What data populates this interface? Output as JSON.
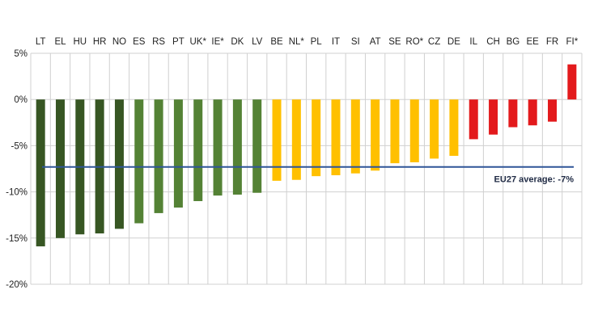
{
  "chart_data": {
    "type": "bar",
    "categories": [
      "LT",
      "EL",
      "HU",
      "HR",
      "NO",
      "ES",
      "RS",
      "PT",
      "UK*",
      "IE*",
      "DK",
      "LV",
      "BE",
      "NL*",
      "PL",
      "IT",
      "SI",
      "AT",
      "SE",
      "RO*",
      "CZ",
      "DE",
      "IL",
      "CH",
      "BG",
      "EE",
      "FR",
      "FI*"
    ],
    "values": [
      -15.9,
      -15.0,
      -14.6,
      -14.5,
      -14.0,
      -13.4,
      -12.3,
      -11.7,
      -11.0,
      -10.4,
      -10.3,
      -10.1,
      -8.8,
      -8.7,
      -8.3,
      -8.2,
      -8.0,
      -7.7,
      -6.9,
      -6.8,
      -6.4,
      -6.1,
      -4.3,
      -3.8,
      -3.0,
      -2.8,
      -2.4,
      3.8
    ],
    "colors": [
      "#375623",
      "#375623",
      "#375623",
      "#375623",
      "#375623",
      "#548235",
      "#548235",
      "#548235",
      "#548235",
      "#548235",
      "#548235",
      "#548235",
      "#ffc000",
      "#ffc000",
      "#ffc000",
      "#ffc000",
      "#ffc000",
      "#ffc000",
      "#ffc000",
      "#ffc000",
      "#ffc000",
      "#ffc000",
      "#e31a1c",
      "#e31a1c",
      "#e31a1c",
      "#e31a1c",
      "#e31a1c",
      "#e31a1c"
    ],
    "yticks": [
      5,
      0,
      -5,
      -10,
      -15,
      -20
    ],
    "ytick_labels": [
      "5%",
      "0%",
      "-5%",
      "-10%",
      "-15%",
      "-20%"
    ],
    "ylim": [
      -20,
      5
    ],
    "grid": true,
    "reference_line": {
      "value": -7.3,
      "label": "EU27 average: -7%",
      "color": "#2f5597"
    }
  }
}
